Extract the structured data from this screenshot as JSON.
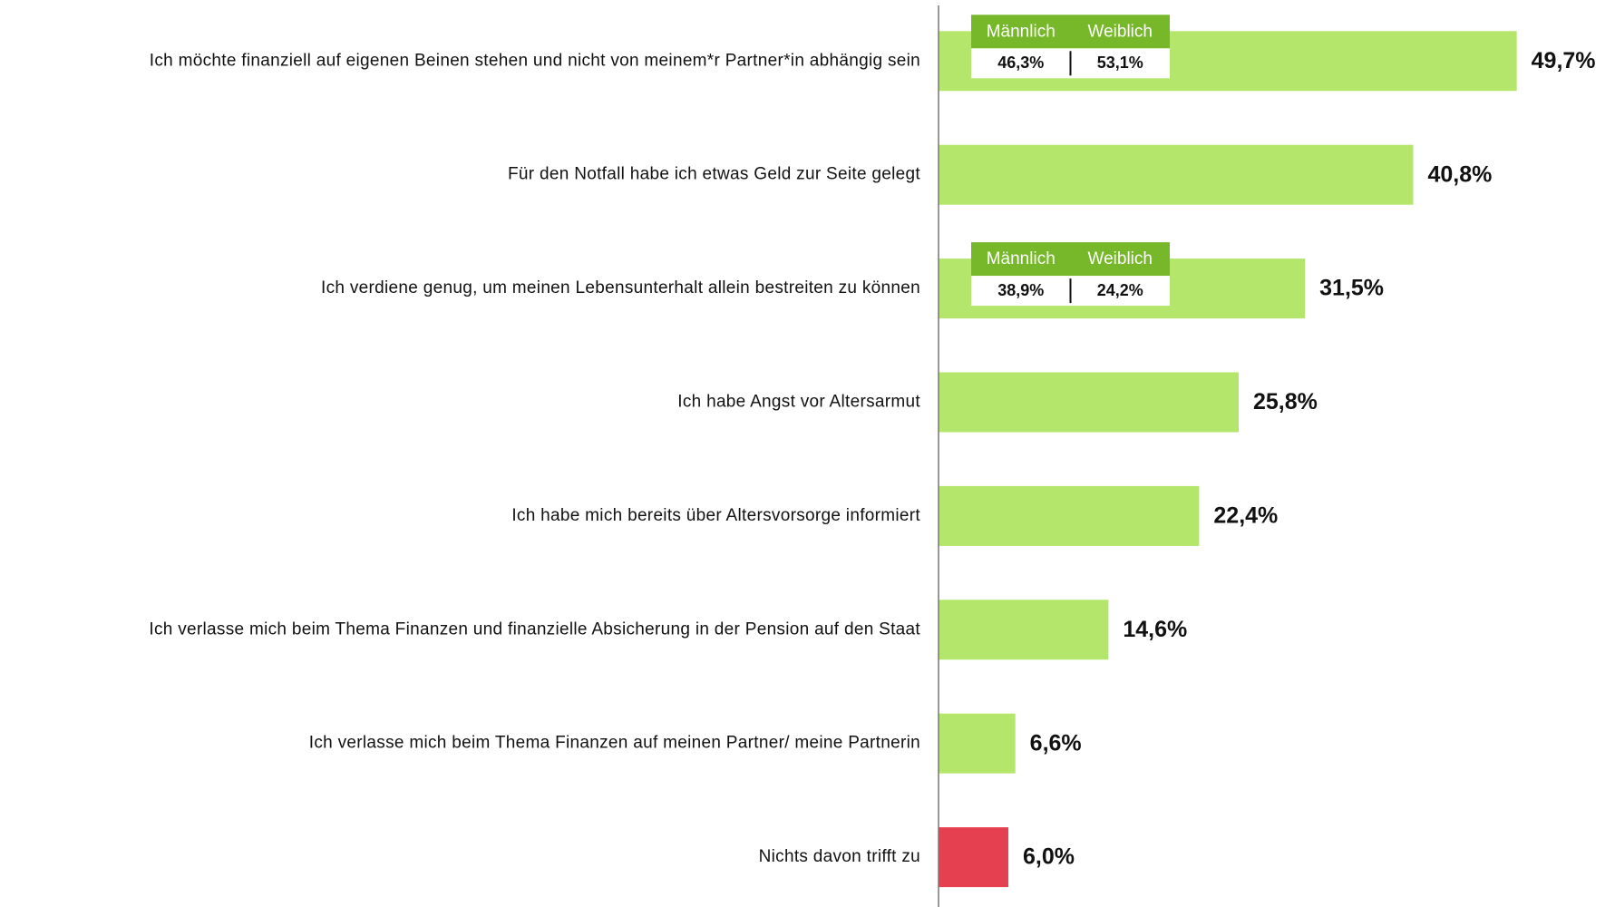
{
  "chart_data": {
    "type": "bar",
    "orientation": "horizontal",
    "categories": [
      "Ich möchte finanziell auf eigenen Beinen stehen und nicht von meinem*r Partner*in abhängig sein",
      "Für den Notfall habe ich etwas Geld zur Seite gelegt",
      "Ich verdiene genug, um meinen Lebensunterhalt allein bestreiten zu können",
      "Ich habe Angst vor Altersarmut",
      "Ich habe mich bereits über Altersvorsorge informiert",
      "Ich verlasse mich beim Thema Finanzen und finanzielle Absicherung in der Pension auf den Staat",
      "Ich verlasse mich beim Thema Finanzen auf meinen Partner/ meine Partnerin",
      "Nichts davon trifft zu"
    ],
    "values": [
      49.7,
      40.8,
      31.5,
      25.8,
      22.4,
      14.6,
      6.6,
      6.0
    ],
    "value_labels": [
      "49,7%",
      "40,8%",
      "31,5%",
      "25,8%",
      "22,4%",
      "14,6%",
      "6,6%",
      "6,0%"
    ],
    "colors": [
      "#b3e66a",
      "#b3e66a",
      "#b3e66a",
      "#b3e66a",
      "#b3e66a",
      "#b3e66a",
      "#b3e66a",
      "#e5404f"
    ],
    "breakdowns": [
      {
        "labels": [
          "Männlich",
          "Weiblich"
        ],
        "values": [
          46.3,
          53.1
        ],
        "value_labels": [
          "46,3%",
          "53,1%"
        ],
        "color": "#76b82a"
      },
      null,
      {
        "labels": [
          "Männlich",
          "Weiblich"
        ],
        "values": [
          38.9,
          24.2
        ],
        "value_labels": [
          "38,9%",
          "24,2%"
        ],
        "color": "#76b82a"
      },
      null,
      null,
      null,
      null,
      null
    ]
  }
}
